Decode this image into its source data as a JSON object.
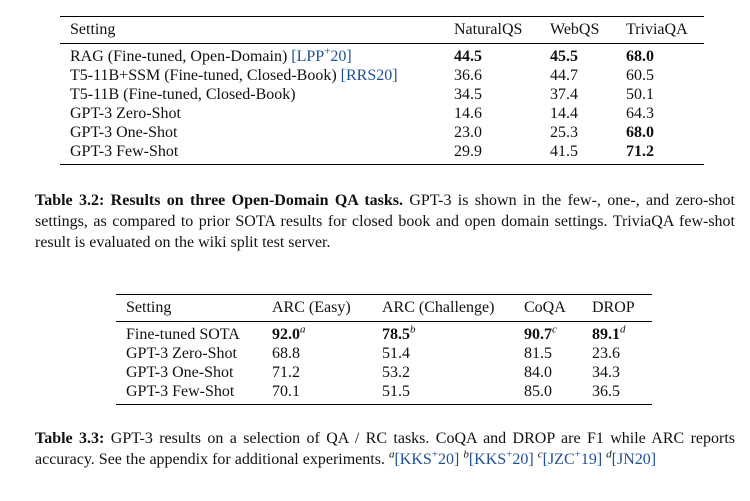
{
  "table1": {
    "headers": [
      "Setting",
      "NaturalQS",
      "WebQS",
      "TriviaQA"
    ],
    "rows": [
      {
        "setting": "RAG (Fine-tuned, Open-Domain) ",
        "cite": "[LPP",
        "cite_sup": "+",
        "cite_end": "20]",
        "nq": "44.5",
        "wq": "45.5",
        "tqa": "68.0"
      },
      {
        "setting": "T5-11B+SSM (Fine-tuned, Closed-Book) ",
        "cite": "[RRS20]",
        "cite_sup": "",
        "cite_end": "",
        "nq": "36.6",
        "wq": "44.7",
        "tqa": "60.5"
      },
      {
        "setting": "T5-11B (Fine-tuned, Closed-Book)",
        "cite": "",
        "cite_sup": "",
        "cite_end": "",
        "nq": "34.5",
        "wq": "37.4",
        "tqa": "50.1"
      },
      {
        "setting": "GPT-3 Zero-Shot",
        "cite": "",
        "cite_sup": "",
        "cite_end": "",
        "nq": "14.6",
        "wq": "14.4",
        "tqa": "64.3"
      },
      {
        "setting": "GPT-3 One-Shot",
        "cite": "",
        "cite_sup": "",
        "cite_end": "",
        "nq": "23.0",
        "wq": "25.3",
        "tqa": "68.0"
      },
      {
        "setting": "GPT-3 Few-Shot",
        "cite": "",
        "cite_sup": "",
        "cite_end": "",
        "nq": "29.9",
        "wq": "41.5",
        "tqa": "71.2"
      }
    ]
  },
  "caption1": {
    "label": "Table 3.2:",
    "lead": "Results on three Open-Domain QA tasks.",
    "text": " GPT-3 is shown in the few-, one-, and zero-shot settings, as compared to prior SOTA results for closed book and open domain settings. TriviaQA few-shot result is evaluated on the wiki split test server."
  },
  "table2": {
    "headers": [
      "Setting",
      "ARC (Easy)",
      "ARC (Challenge)",
      "CoQA",
      "DROP"
    ],
    "rows": [
      {
        "setting": "Fine-tuned SOTA",
        "arc_e": "92.0",
        "arc_e_sup": "a",
        "arc_c": "78.5",
        "arc_c_sup": "b",
        "coqa": "90.7",
        "coqa_sup": "c",
        "drop": "89.1",
        "drop_sup": "d"
      },
      {
        "setting": "GPT-3 Zero-Shot",
        "arc_e": "68.8",
        "arc_e_sup": "",
        "arc_c": "51.4",
        "arc_c_sup": "",
        "coqa": "81.5",
        "coqa_sup": "",
        "drop": "23.6",
        "drop_sup": ""
      },
      {
        "setting": "GPT-3 One-Shot",
        "arc_e": "71.2",
        "arc_e_sup": "",
        "arc_c": "53.2",
        "arc_c_sup": "",
        "coqa": "84.0",
        "coqa_sup": "",
        "drop": "34.3",
        "drop_sup": ""
      },
      {
        "setting": "GPT-3 Few-Shot",
        "arc_e": "70.1",
        "arc_e_sup": "",
        "arc_c": "51.5",
        "arc_c_sup": "",
        "coqa": "85.0",
        "coqa_sup": "",
        "drop": "36.5",
        "drop_sup": ""
      }
    ]
  },
  "caption2": {
    "label": "Table 3.3:",
    "text": " GPT-3 results on a selection of QA / RC tasks. CoQA and DROP are F1 while ARC reports accuracy. See the appendix for additional experiments. ",
    "refs": [
      {
        "mark": "a",
        "cite": "[KKS",
        "sup": "+",
        "end": "20]"
      },
      {
        "mark": "b",
        "cite": "[KKS",
        "sup": "+",
        "end": "20]"
      },
      {
        "mark": "c",
        "cite": "[JZC",
        "sup": "+",
        "end": "19]"
      },
      {
        "mark": "d",
        "cite": "[JN20]",
        "sup": "",
        "end": ""
      }
    ]
  },
  "colors": {
    "citation": "#1f4f94",
    "text": "#111111"
  }
}
